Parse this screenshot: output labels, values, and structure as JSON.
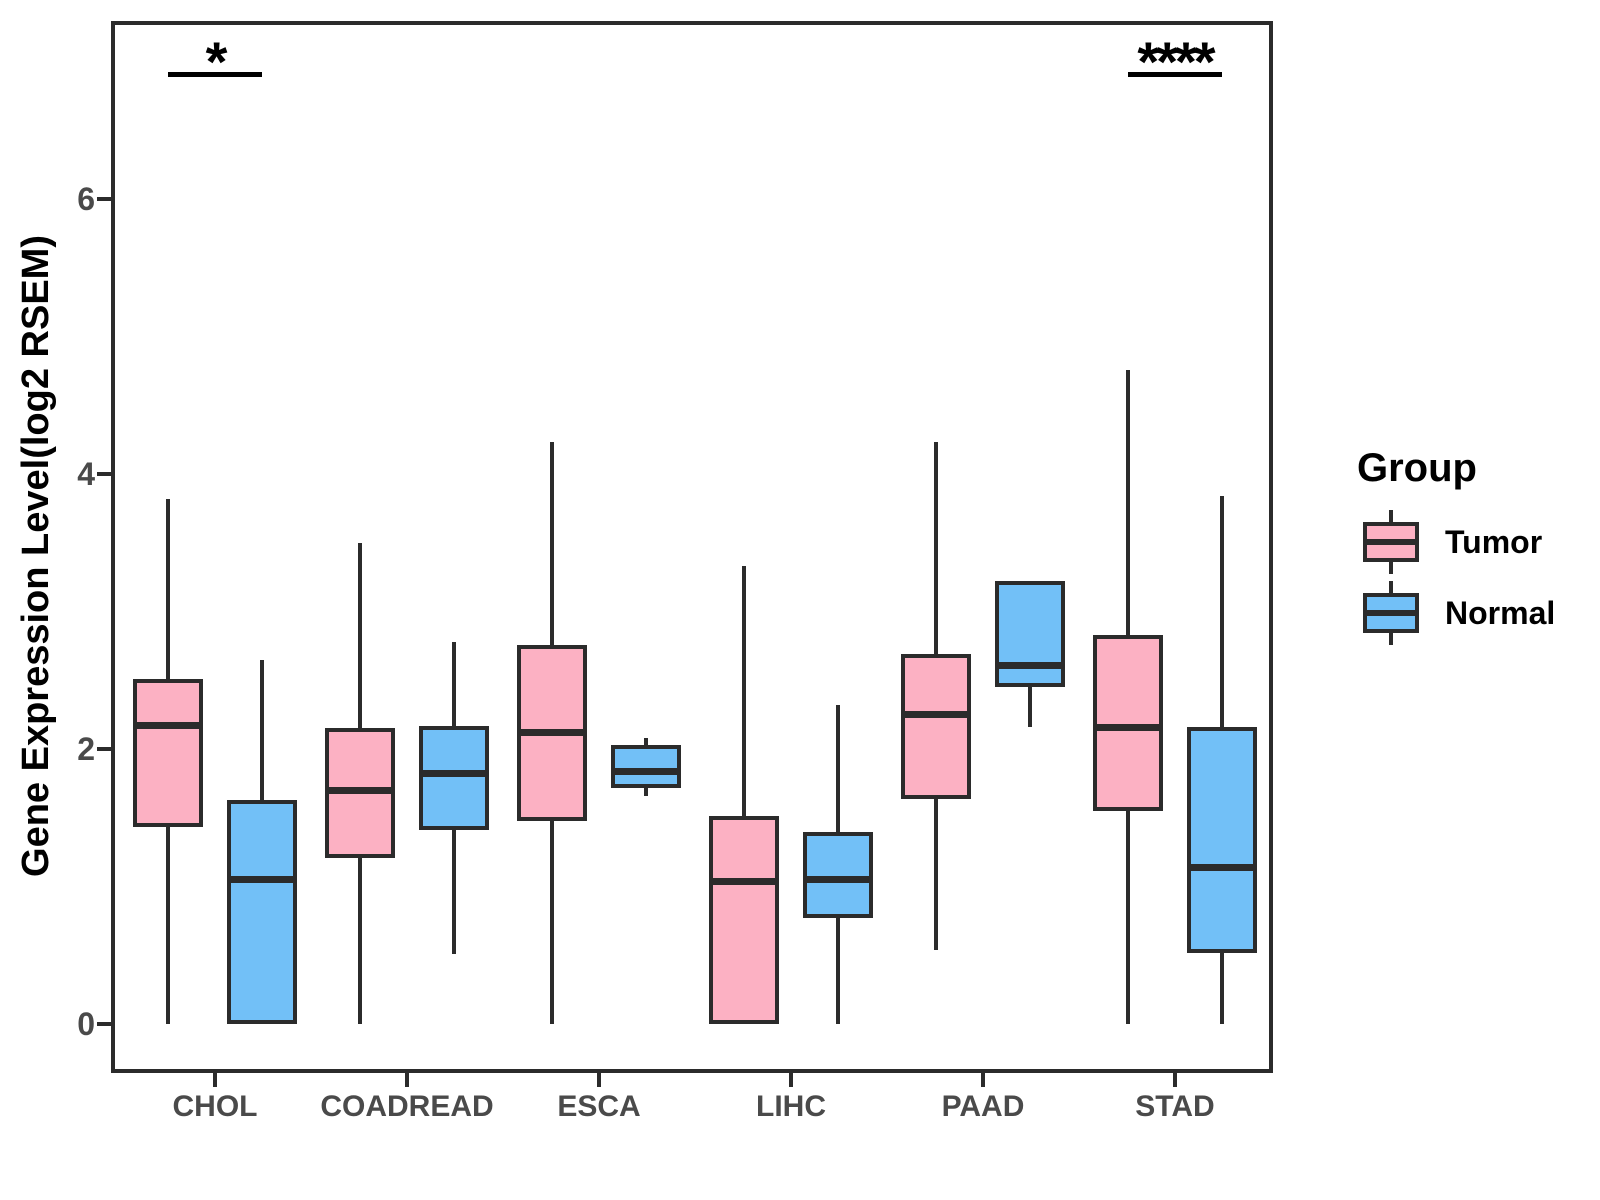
{
  "chart_data": {
    "type": "boxplot",
    "title": "",
    "xlabel": "",
    "ylabel": "Gene Expression Level(log2 RSEM)",
    "categories": [
      "CHOL",
      "COADREAD",
      "ESCA",
      "LIHC",
      "PAAD",
      "STAD"
    ],
    "yticks": [
      0,
      2,
      4,
      6
    ],
    "ylim": [
      -0.35,
      7.3
    ],
    "grid": false,
    "legend": {
      "title": "Group",
      "position": "right"
    },
    "series": [
      {
        "name": "Tumor",
        "color": "#FCB1C3",
        "boxes": [
          {
            "category": "CHOL",
            "min": 0.0,
            "q1": 1.43,
            "median": 2.17,
            "q3": 2.51,
            "max": 3.82
          },
          {
            "category": "COADREAD",
            "min": 0.0,
            "q1": 1.21,
            "median": 1.7,
            "q3": 2.15,
            "max": 3.5
          },
          {
            "category": "ESCA",
            "min": 0.0,
            "q1": 1.48,
            "median": 2.12,
            "q3": 2.76,
            "max": 4.23
          },
          {
            "category": "LIHC",
            "min": 0.0,
            "q1": 0.0,
            "median": 1.04,
            "q3": 1.51,
            "max": 3.33
          },
          {
            "category": "PAAD",
            "min": 0.54,
            "q1": 1.64,
            "median": 2.25,
            "q3": 2.69,
            "max": 4.23
          },
          {
            "category": "STAD",
            "min": 0.0,
            "q1": 1.55,
            "median": 2.16,
            "q3": 2.83,
            "max": 4.76
          }
        ]
      },
      {
        "name": "Normal",
        "color": "#72C0F7",
        "boxes": [
          {
            "category": "CHOL",
            "min": 0.0,
            "q1": 0.0,
            "median": 1.05,
            "q3": 1.63,
            "max": 2.65
          },
          {
            "category": "COADREAD",
            "min": 0.51,
            "q1": 1.41,
            "median": 1.82,
            "q3": 2.17,
            "max": 2.78
          },
          {
            "category": "ESCA",
            "min": 1.66,
            "q1": 1.72,
            "median": 1.84,
            "q3": 2.03,
            "max": 2.08
          },
          {
            "category": "LIHC",
            "min": 0.0,
            "q1": 0.77,
            "median": 1.05,
            "q3": 1.4,
            "max": 2.32
          },
          {
            "category": "PAAD",
            "min": 2.16,
            "q1": 2.45,
            "median": 2.61,
            "q3": 3.22,
            "max": 3.22
          },
          {
            "category": "STAD",
            "min": 0.0,
            "q1": 0.52,
            "median": 1.14,
            "q3": 2.16,
            "max": 3.84
          }
        ]
      }
    ],
    "significance": [
      {
        "category": "CHOL",
        "label": "*"
      },
      {
        "category": "STAD",
        "label": "****"
      }
    ]
  },
  "colors": {
    "tumor_fill": "#FCB1C3",
    "normal_fill": "#72C0F7",
    "line": "#2b2b2b",
    "tick_label": "#4a4a4a",
    "text": "#000000"
  }
}
